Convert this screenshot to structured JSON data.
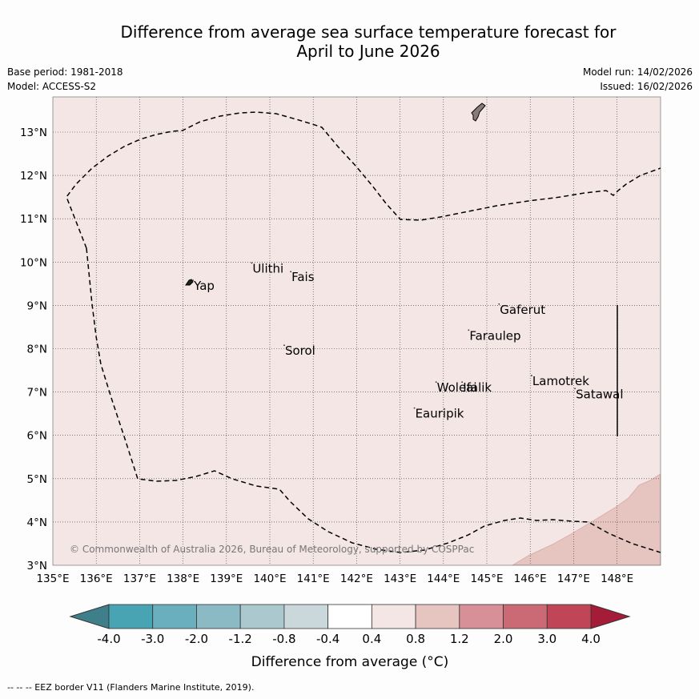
{
  "title_line1": "Difference from average sea surface temperature forecast for",
  "title_line2": "April to June 2026",
  "base_period": "Base period: 1981-2018",
  "model": "Model: ACCESS-S2",
  "model_run": "Model run: 14/02/2026",
  "issued": "Issued: 16/02/2026",
  "copyright": "© Commonwealth of Australia 2026, Bureau of Meteorology, supported by COSPPac",
  "footer": "--  --  -- EEZ border V11 (Flanders Marine Institute, 2019).",
  "colorbar": {
    "label": "Difference from average (°C)",
    "ticks": [
      "-4.0",
      "-3.0",
      "-2.0",
      "-1.2",
      "-0.8",
      "-0.4",
      "0.4",
      "0.8",
      "1.2",
      "2.0",
      "3.0",
      "4.0"
    ],
    "colors": [
      "#48a3b3",
      "#6aafbd",
      "#8bb9c4",
      "#aac8ce",
      "#cad8dc",
      "#ffffff",
      "#f3e6e5",
      "#e6c5c1",
      "#d79097",
      "#cb6a75",
      "#c04556"
    ],
    "under_color": "#3e7f8a",
    "over_color": "#a51c39"
  },
  "map": {
    "lon_labels": [
      "135°E",
      "136°E",
      "137°E",
      "138°E",
      "139°E",
      "140°E",
      "141°E",
      "142°E",
      "143°E",
      "144°E",
      "145°E",
      "146°E",
      "147°E",
      "148°E"
    ],
    "lat_labels": [
      "3°N",
      "4°N",
      "5°N",
      "6°N",
      "7°N",
      "8°N",
      "9°N",
      "10°N",
      "11°N",
      "12°N",
      "13°N"
    ],
    "background_anomaly": "0.4 to 0.8",
    "background_color": "#f3e6e5",
    "corner_anomaly": "0.8 to 1.2",
    "corner_color": "#e6c5c1",
    "land_color": "#8a7b7b",
    "places": [
      {
        "name": "Yap",
        "lon": 138.25,
        "lat": 9.45
      },
      {
        "name": "Ulithi",
        "lon": 139.6,
        "lat": 9.85
      },
      {
        "name": "Fais",
        "lon": 140.5,
        "lat": 9.65
      },
      {
        "name": "Sorol",
        "lon": 140.35,
        "lat": 7.95
      },
      {
        "name": "Gaferut",
        "lon": 145.3,
        "lat": 8.9
      },
      {
        "name": "Faraulep",
        "lon": 144.6,
        "lat": 8.3
      },
      {
        "name": "Woleai",
        "lon": 143.85,
        "lat": 7.1
      },
      {
        "name": "Ifalik",
        "lon": 144.45,
        "lat": 7.1
      },
      {
        "name": "Lamotrek",
        "lon": 146.05,
        "lat": 7.25
      },
      {
        "name": "Satawal",
        "lon": 147.05,
        "lat": 6.95
      },
      {
        "name": "Eauripik",
        "lon": 143.35,
        "lat": 6.5
      }
    ]
  }
}
